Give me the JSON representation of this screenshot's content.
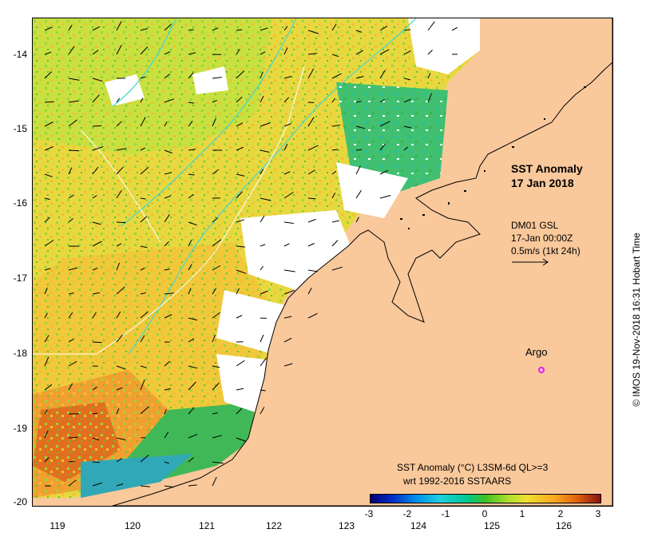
{
  "map": {
    "title_line1": "SST Anomaly",
    "title_line2": "17 Jan 2018",
    "current_source": "DM01 GSL",
    "current_time": "17-Jan 00:00Z",
    "current_scale": "0.5m/s (1kt 24h)",
    "argo_label": "Argo",
    "product_line1": "SST Anomaly (°C) L3SM-6d QL>=3",
    "product_line2": "wrt 1992-2016 SSTAARS",
    "copyright": "© IMOS 19-Nov-2018 16:31 Hobart Time",
    "colors": {
      "land": "#f9c89b",
      "argo": "#e020e0"
    }
  },
  "y_axis": {
    "labels": [
      "-14",
      "-15",
      "-16",
      "-17",
      "-18",
      "-19",
      "-20"
    ]
  },
  "x_axis": {
    "labels": [
      "119",
      "120",
      "121",
      "122",
      "123",
      "124",
      "125",
      "126"
    ]
  },
  "colorbar": {
    "labels": [
      "-3",
      "-2",
      "-1",
      "0",
      "1",
      "2",
      "3"
    ]
  }
}
